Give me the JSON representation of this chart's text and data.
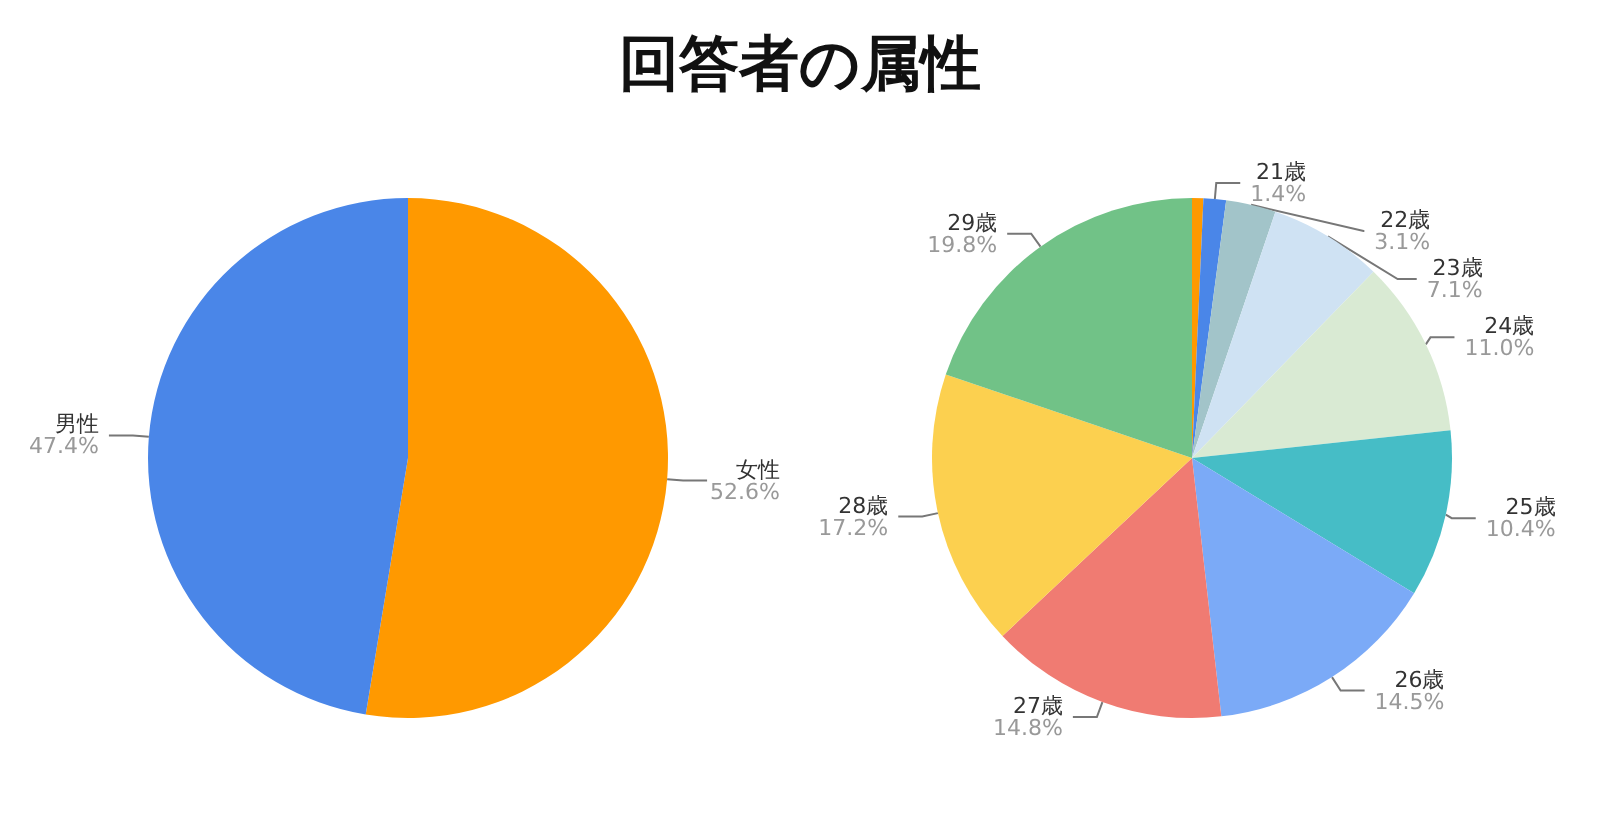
{
  "chart_data": [
    {
      "type": "pie",
      "title": "回答者の属性",
      "categories": [
        "女性",
        "男性"
      ],
      "values": [
        52.6,
        47.4
      ],
      "colors": [
        "#ff9900",
        "#4a86e8"
      ],
      "value_labels": [
        "52.6%",
        "47.4%"
      ]
    },
    {
      "type": "pie",
      "categories": [
        null,
        "21歳",
        "22歳",
        "23歳",
        "24歳",
        "25歳",
        "26歳",
        "27歳",
        "28歳",
        "29歳"
      ],
      "values": [
        0.7,
        1.4,
        3.1,
        7.1,
        11.0,
        10.4,
        14.5,
        14.8,
        17.2,
        19.8
      ],
      "colors": [
        "#ff9900",
        "#4a86e8",
        "#a2c4c9",
        "#cfe2f3",
        "#d9ead3",
        "#46bdc6",
        "#7baaf7",
        "#f07b72",
        "#fcd04f",
        "#71c287"
      ],
      "value_labels": [
        null,
        "1.4%",
        "3.1%",
        "7.1%",
        "11.0%",
        "10.4%",
        "14.5%",
        "14.8%",
        "17.2%",
        "19.8%"
      ]
    }
  ]
}
